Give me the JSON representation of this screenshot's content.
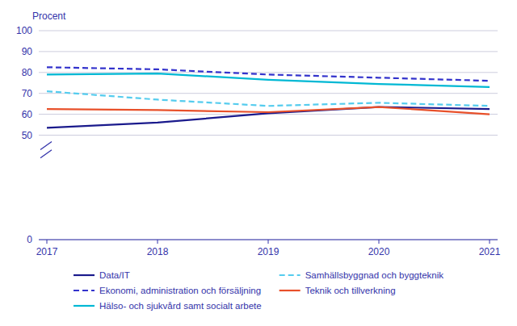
{
  "chart_data": {
    "type": "line",
    "y_label": "Procent",
    "x": [
      2017,
      2018,
      2019,
      2020,
      2021
    ],
    "series": [
      {
        "name": "Data/IT",
        "color": "#1a1a8c",
        "line_style": "solid",
        "values": [
          53.5,
          56.0,
          60.5,
          63.5,
          62.5
        ]
      },
      {
        "name": "Ekonomi, administration och försäljning",
        "color": "#3333cc",
        "line_style": "dashed",
        "values": [
          82.5,
          81.5,
          79.0,
          77.5,
          76.0
        ]
      },
      {
        "name": "Hälso- och sjukvård samt socialt arbete",
        "color": "#00b8d4",
        "line_style": "solid",
        "values": [
          79.0,
          79.5,
          76.5,
          74.5,
          73.0
        ]
      },
      {
        "name": "Samhällsbyggnad och byggteknik",
        "color": "#55ccee",
        "line_style": "dashed",
        "values": [
          71.0,
          67.0,
          64.0,
          65.5,
          64.0
        ]
      },
      {
        "name": "Teknik och tillverkning",
        "color": "#e8502a",
        "line_style": "solid",
        "values": [
          62.5,
          62.0,
          61.0,
          63.5,
          60.0
        ]
      }
    ],
    "xlim": [
      2017,
      2021
    ],
    "xticks": [
      2017,
      2018,
      2019,
      2020,
      2021
    ],
    "ylim": [
      0,
      100
    ],
    "yticks": [
      0,
      50,
      60,
      70,
      80,
      90,
      100
    ],
    "grid": true,
    "legend": "bottom"
  }
}
